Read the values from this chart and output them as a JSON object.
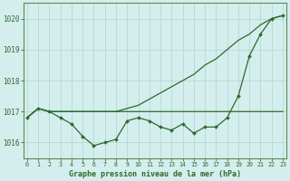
{
  "xlabel": "Graphe pression niveau de la mer (hPa)",
  "hours": [
    0,
    1,
    2,
    3,
    4,
    5,
    6,
    7,
    8,
    9,
    10,
    11,
    12,
    13,
    14,
    15,
    16,
    17,
    18,
    19,
    20,
    21,
    22,
    23
  ],
  "line_markers": [
    1016.8,
    1017.1,
    1017.0,
    1016.8,
    1016.6,
    1016.2,
    1015.9,
    1016.0,
    1016.1,
    1016.7,
    1016.8,
    1016.7,
    1016.5,
    1016.4,
    1016.6,
    1016.3,
    1016.5,
    1016.5,
    1016.8,
    1017.5,
    1018.8,
    1019.5,
    1020.0,
    1020.1
  ],
  "line_flat": [
    1016.8,
    1017.1,
    1017.0,
    1017.0,
    1017.0,
    1017.0,
    1017.0,
    1017.0,
    1017.0,
    1017.0,
    1017.0,
    1017.0,
    1017.0,
    1017.0,
    1017.0,
    1017.0,
    1017.0,
    1017.0,
    1017.0,
    1017.0,
    1017.0,
    1017.0,
    1017.0,
    1017.0
  ],
  "line_diag": [
    1016.8,
    1017.1,
    1017.0,
    1017.0,
    1017.0,
    1017.0,
    1017.0,
    1017.0,
    1017.0,
    1017.1,
    1017.2,
    1017.4,
    1017.6,
    1017.8,
    1018.0,
    1018.2,
    1018.5,
    1018.7,
    1019.0,
    1019.3,
    1019.5,
    1019.8,
    1020.0,
    1020.1
  ],
  "ylim": [
    1015.5,
    1020.5
  ],
  "yticks": [
    1016,
    1017,
    1018,
    1019,
    1020
  ],
  "line_color": "#2d6a2d",
  "bg_color": "#d4eeed",
  "grid_color": "#afd4d0",
  "label_color": "#2d6a2d",
  "spine_color": "#5a8a5a"
}
